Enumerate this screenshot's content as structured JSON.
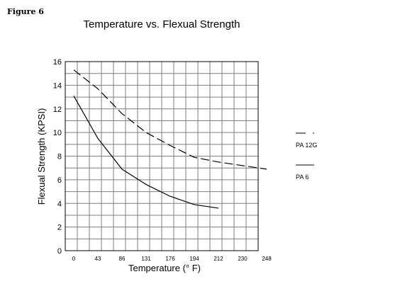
{
  "figure_label": "Figure 6",
  "chart_data": {
    "type": "line",
    "title": "Temperature vs. Flexual Strength",
    "xlabel": "Temperature (° F)",
    "ylabel": "Flexual Strength (KPSI)",
    "ylim": [
      0,
      16
    ],
    "yticks": [
      0,
      2,
      4,
      6,
      8,
      10,
      12,
      14,
      16
    ],
    "xtick_labels": [
      "0",
      "43",
      "86",
      "131",
      "176",
      "194",
      "212",
      "230",
      "248"
    ],
    "grid": true,
    "legend_position": "right",
    "series": [
      {
        "name": "PA 12G",
        "style": "dashed",
        "color": "#000000",
        "points": [
          {
            "x_index": 0,
            "y": 15.3
          },
          {
            "x_index": 1,
            "y": 13.7
          },
          {
            "x_index": 2,
            "y": 11.6
          },
          {
            "x_index": 3,
            "y": 10.0
          },
          {
            "x_index": 4,
            "y": 8.9
          },
          {
            "x_index": 5,
            "y": 7.9
          },
          {
            "x_index": 6,
            "y": 7.5
          },
          {
            "x_index": 7,
            "y": 7.2
          },
          {
            "x_index": 8,
            "y": 6.9
          }
        ]
      },
      {
        "name": "PA 6",
        "style": "solid",
        "color": "#000000",
        "points": [
          {
            "x_index": 0,
            "y": 13.1
          },
          {
            "x_index": 1,
            "y": 9.5
          },
          {
            "x_index": 2,
            "y": 6.9
          },
          {
            "x_index": 3,
            "y": 5.6
          },
          {
            "x_index": 4,
            "y": 4.6
          },
          {
            "x_index": 5,
            "y": 3.9
          },
          {
            "x_index": 6,
            "y": 3.6
          }
        ]
      }
    ]
  }
}
